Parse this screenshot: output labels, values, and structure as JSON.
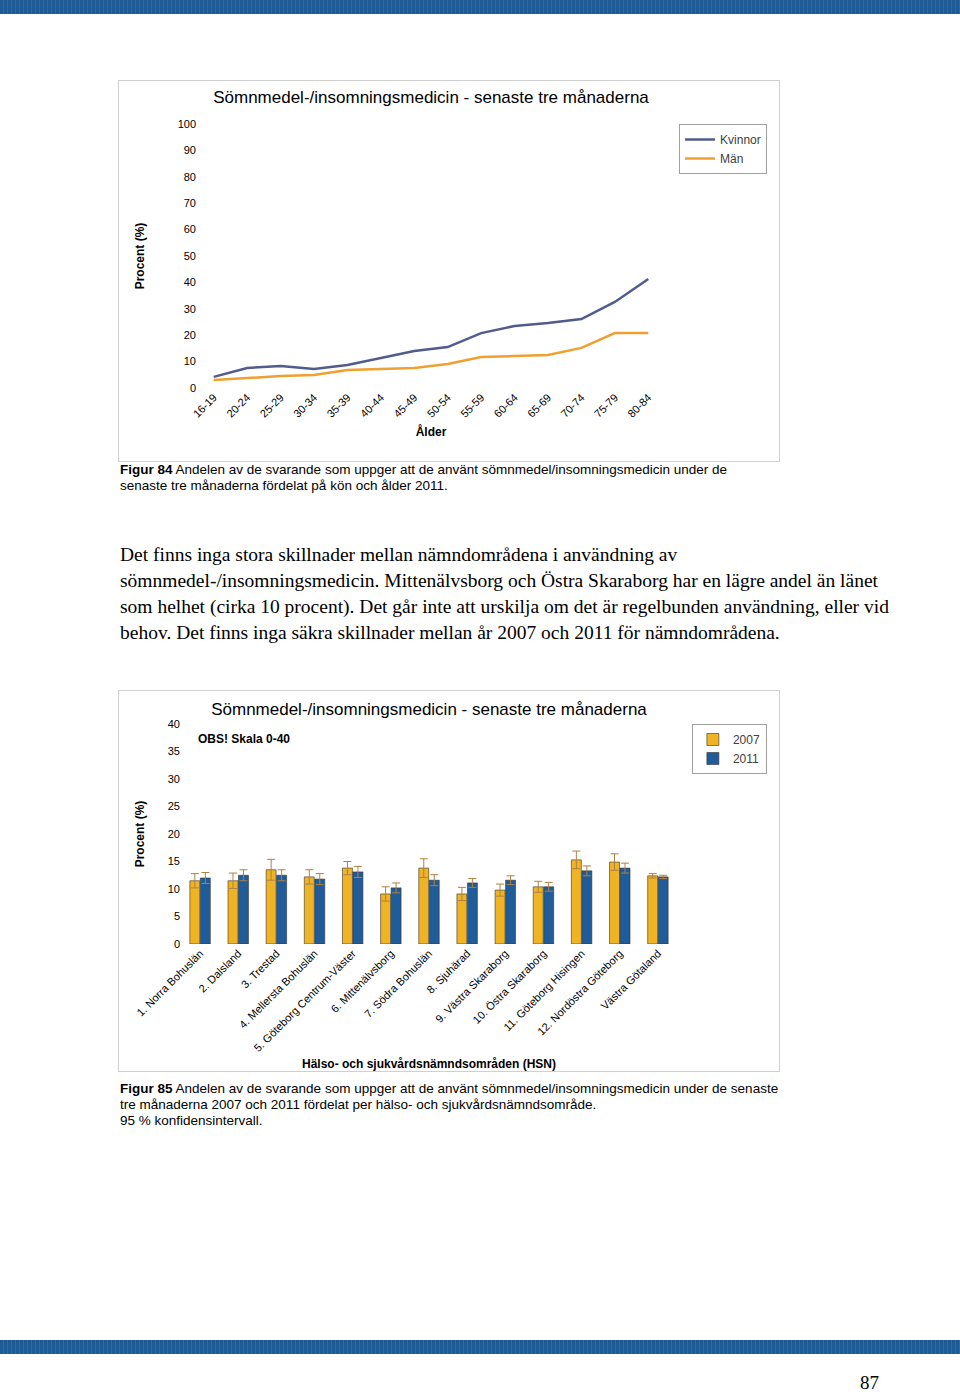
{
  "chart_data": [
    {
      "type": "line",
      "title": "Sömnmedel-/insomningsmedicin - senaste tre månaderna",
      "x_label": "Ålder",
      "y_label": "Procent (%)",
      "categories": [
        "16-19",
        "20-24",
        "25-29",
        "30-34",
        "35-39",
        "40-44",
        "45-49",
        "50-54",
        "55-59",
        "60-64",
        "65-69",
        "70-74",
        "75-79",
        "80-84"
      ],
      "series": [
        {
          "name": "Kvinnor",
          "color": "#515c8c",
          "values": [
            4.2,
            7.6,
            8.3,
            7.2,
            8.7,
            11.4,
            14.0,
            15.5,
            20.8,
            23.5,
            24.6,
            26.1,
            32.6,
            41.3
          ]
        },
        {
          "name": "Män",
          "color": "#f0a030",
          "values": [
            3.0,
            3.8,
            4.5,
            4.9,
            6.8,
            7.2,
            7.6,
            9.1,
            11.7,
            12.1,
            12.5,
            15.2,
            20.8,
            20.8
          ]
        }
      ],
      "ylim": [
        0,
        100
      ],
      "yticks": [
        0,
        10,
        20,
        30,
        40,
        50,
        60,
        70,
        80,
        90,
        100
      ],
      "grid": false,
      "legend": "right"
    },
    {
      "type": "bar",
      "title": "Sömnmedel-/insomningsmedicin - senaste tre månaderna",
      "annotations": [
        "OBS! Skala 0-40"
      ],
      "x_label": "Hälso- och sjukvårdsnämndsområden (HSN)",
      "y_label": "Procent (%)",
      "categories": [
        "1. Norra Bohuslän",
        "2. Dalsland",
        "3. Trestad",
        "4. Mellersta Bohuslän",
        "5. Göteborg Centrum-Väster",
        "6. Mittenälvsborg",
        "7. Södra Bohuslän",
        "8. Sjuhärad",
        "9. Västra Skaraborg",
        "10. Östra Skaraborg",
        "11. Göteborg Hisingen",
        "12. Nordöstra Göteborg",
        "Västra Götaland"
      ],
      "series": [
        {
          "name": "2007",
          "color": "#f0b323",
          "values": [
            11.5,
            11.5,
            13.5,
            12.2,
            13.8,
            9.1,
            13.8,
            9.1,
            9.8,
            10.4,
            15.3,
            14.9,
            12.4
          ],
          "errors": [
            1.3,
            1.4,
            1.9,
            1.3,
            1.2,
            1.3,
            1.7,
            1.2,
            1.1,
            1.0,
            1.6,
            1.5,
            0.4
          ]
        },
        {
          "name": "2011",
          "color": "#1f5c99",
          "values": [
            12.0,
            12.5,
            12.5,
            11.8,
            13.1,
            10.2,
            11.6,
            11.1,
            11.6,
            10.4,
            13.3,
            13.8,
            12.2
          ],
          "errors": [
            1.0,
            1.0,
            1.0,
            1.0,
            1.0,
            0.9,
            1.0,
            0.8,
            0.8,
            0.8,
            0.9,
            0.9,
            0.3
          ]
        }
      ],
      "ylim": [
        0,
        40
      ],
      "yticks": [
        0,
        5,
        10,
        15,
        20,
        25,
        30,
        35,
        40
      ],
      "grid": false,
      "legend": "right"
    }
  ],
  "document": {
    "figure_84": {
      "label": "Figur 84",
      "text": "Andelen av de svarande som uppger att de använt sömnmedel/insomningsmedicin under de senaste tre månaderna fördelat på kön och ålder 2011."
    },
    "paragraph": "Det finns inga stora skillnader mellan nämndområdena i användning av sömnmedel-/insomningsmedicin. Mittenälvsborg och Östra Skaraborg har en lägre andel än länet som helhet (cirka 10 procent). Det går inte att urskilja om det är regelbunden användning, eller vid behov. Det finns inga säkra skillnader mellan år 2007 och 2011 för nämndområdena.",
    "figure_85": {
      "label": "Figur 85",
      "lines": [
        "Andelen av de svarande som uppger att de använt sömnmedel/insomningsmedicin under de senaste tre månaderna 2007 och 2011 fördelat per hälso- och sjukvårdsnämndsområde.",
        "95 % konfidensintervall."
      ]
    },
    "page_number": "87"
  }
}
